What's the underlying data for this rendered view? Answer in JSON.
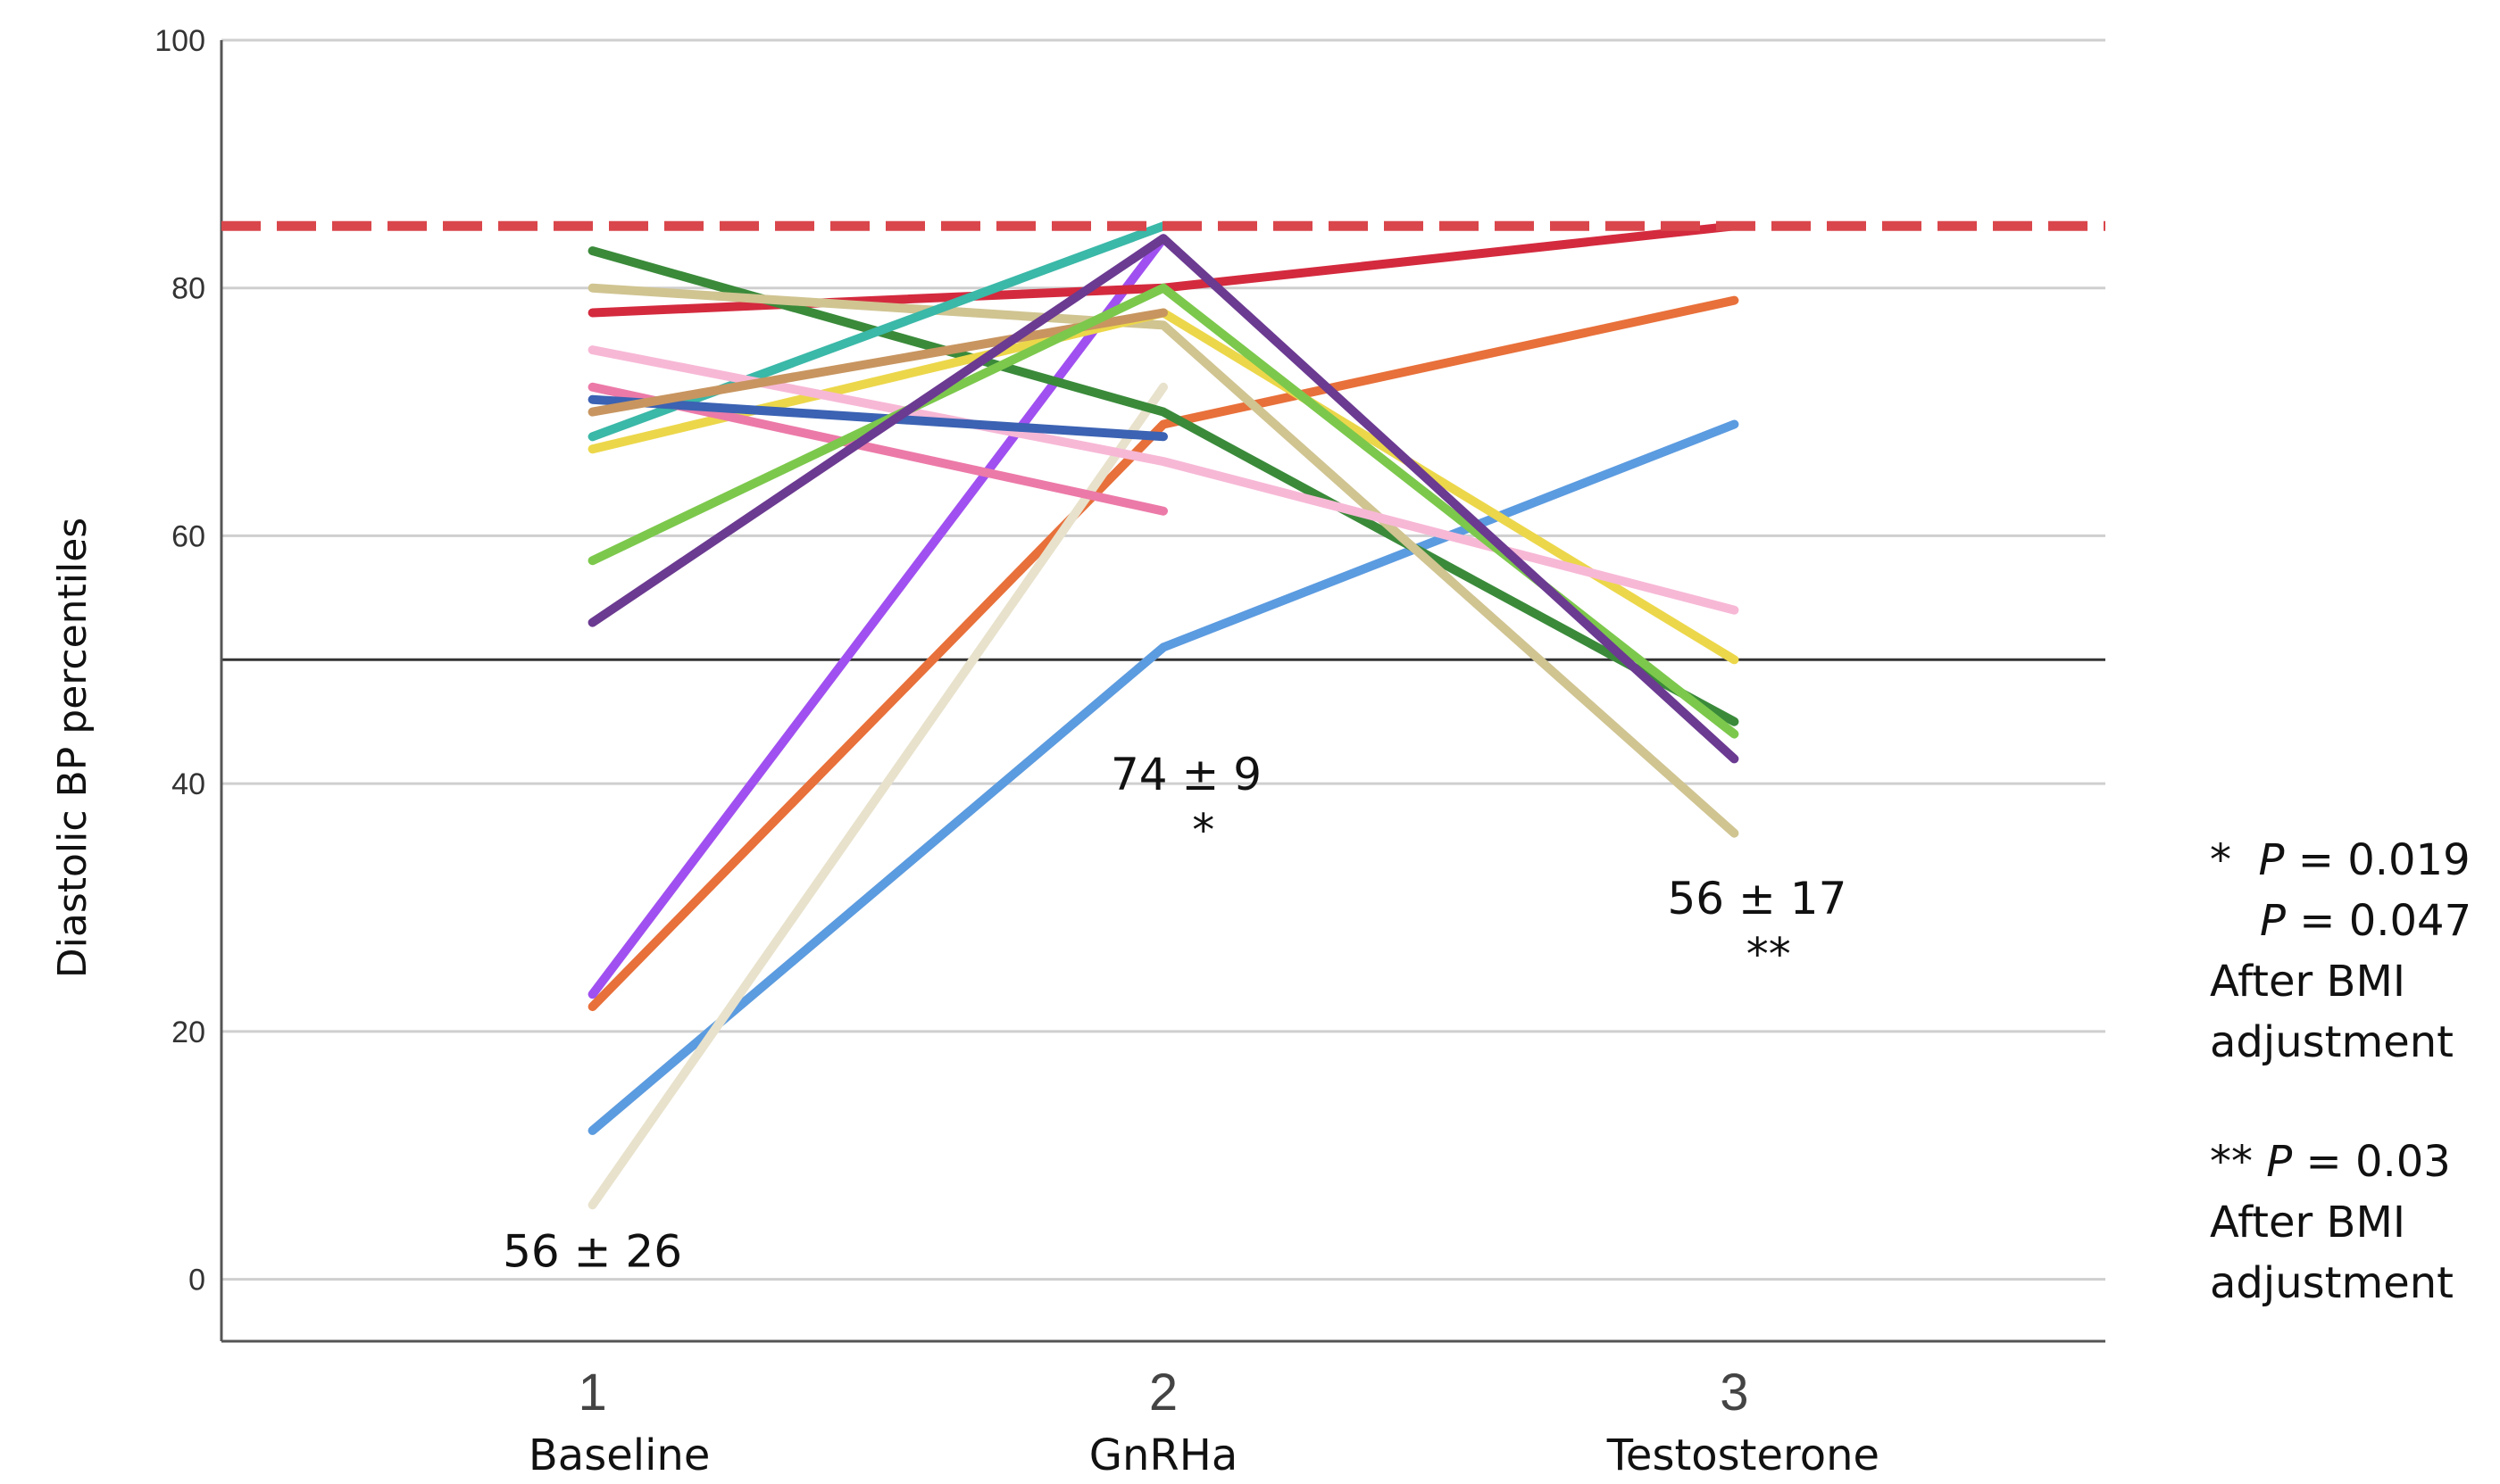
{
  "chart_data": {
    "type": "line",
    "title": "",
    "xlabel": "",
    "ylabel": "Diastolic BP percentiles",
    "ylim": [
      -5,
      100
    ],
    "xlim": [
      0.35,
      3.65
    ],
    "yticks": [
      0,
      20,
      40,
      60,
      80,
      100
    ],
    "xticks": [
      1,
      2,
      3
    ],
    "categories": [
      "Baseline",
      "GnRHa",
      "Testosterone"
    ],
    "grid": true,
    "legend": "none",
    "reference_lines": [
      {
        "y": 85,
        "style": "dashed",
        "color": "#d9464b"
      },
      {
        "y": 50,
        "style": "solid",
        "color": "#333333"
      }
    ],
    "series": [
      {
        "x": [
          1,
          2
        ],
        "values": [
          12,
          51
        ],
        "color": "#dedad1"
      },
      {
        "x": [
          1,
          2,
          3
        ],
        "values": [
          12,
          51,
          69
        ],
        "color": "#5b9be0"
      },
      {
        "x": [
          1,
          2,
          3
        ],
        "values": [
          22,
          69,
          79
        ],
        "color": "#e8703a"
      },
      {
        "x": [
          1,
          2
        ],
        "values": [
          23,
          84
        ],
        "color": "#a050f0"
      },
      {
        "x": [
          1,
          2
        ],
        "values": [
          6,
          72
        ],
        "color": "#e8e2cc"
      },
      {
        "x": [
          1,
          2,
          3
        ],
        "values": [
          78,
          80,
          85
        ],
        "color": "#d42a3e"
      },
      {
        "x": [
          1,
          2,
          3
        ],
        "values": [
          83,
          70,
          45
        ],
        "color": "#3a8a3a"
      },
      {
        "x": [
          1,
          2,
          3
        ],
        "values": [
          80,
          77,
          36
        ],
        "color": "#d0c491"
      },
      {
        "x": [
          1,
          2
        ],
        "values": [
          68,
          85
        ],
        "color": "#3ab8a8"
      },
      {
        "x": [
          1,
          2,
          3
        ],
        "values": [
          67,
          78,
          50
        ],
        "color": "#ecd74a"
      },
      {
        "x": [
          1,
          2,
          3
        ],
        "values": [
          75,
          66,
          54
        ],
        "color": "#f7b8d6"
      },
      {
        "x": [
          1,
          2
        ],
        "values": [
          72,
          62
        ],
        "color": "#ec7aa8"
      },
      {
        "x": [
          1,
          2
        ],
        "values": [
          71,
          68
        ],
        "color": "#3b62b3"
      },
      {
        "x": [
          1,
          2
        ],
        "values": [
          70,
          78
        ],
        "color": "#c89560"
      },
      {
        "x": [
          1,
          2,
          3
        ],
        "values": [
          58,
          80,
          44
        ],
        "color": "#7cc84c"
      },
      {
        "x": [
          1,
          2,
          3
        ],
        "values": [
          53,
          84,
          42
        ],
        "color": "#6b3a91"
      }
    ],
    "annotations": [
      {
        "text": "56 ± 26",
        "x": 1,
        "y": 1
      },
      {
        "text": "74 ± 9",
        "x": 2.04,
        "y": 39.5
      },
      {
        "text": "*",
        "x": 2.07,
        "y": 35
      },
      {
        "text": "56 ± 17",
        "x": 3.04,
        "y": 29.5
      },
      {
        "text": "**",
        "x": 3.06,
        "y": 25
      }
    ]
  },
  "notes": {
    "note1_star": "*",
    "note1_line1_p": "P",
    "note1_line1_val": " = 0.019",
    "note1_line2_p": "P",
    "note1_line2_val": " = 0.047",
    "note1_line3": "After BMI",
    "note1_line4": "adjustment",
    "note2_star": "**",
    "note2_line1_p": "P",
    "note2_line1_val": " = 0.03",
    "note2_line2": "After BMI",
    "note2_line3": "adjustment"
  }
}
